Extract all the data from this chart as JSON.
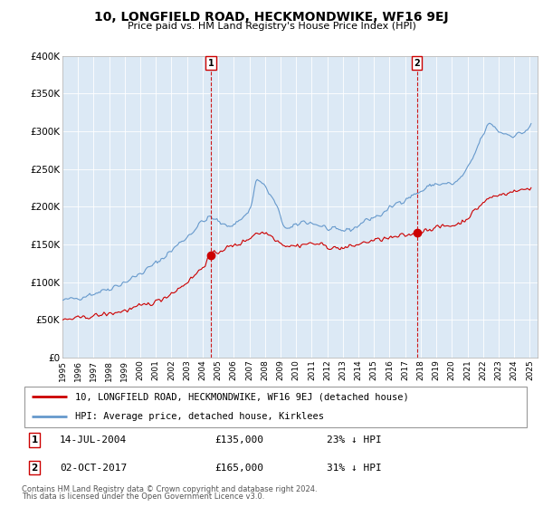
{
  "title": "10, LONGFIELD ROAD, HECKMONDWIKE, WF16 9EJ",
  "subtitle": "Price paid vs. HM Land Registry's House Price Index (HPI)",
  "background_color": "#ffffff",
  "plot_bg_color": "#dce9f5",
  "ylim": [
    0,
    400000
  ],
  "xlim_start": 1995.0,
  "xlim_end": 2025.5,
  "yticks": [
    0,
    50000,
    100000,
    150000,
    200000,
    250000,
    300000,
    350000,
    400000
  ],
  "ytick_labels": [
    "£0",
    "£50K",
    "£100K",
    "£150K",
    "£200K",
    "£250K",
    "£300K",
    "£350K",
    "£400K"
  ],
  "xticks": [
    1995,
    1996,
    1997,
    1998,
    1999,
    2000,
    2001,
    2002,
    2003,
    2004,
    2005,
    2006,
    2007,
    2008,
    2009,
    2010,
    2011,
    2012,
    2013,
    2014,
    2015,
    2016,
    2017,
    2018,
    2019,
    2020,
    2021,
    2022,
    2023,
    2024,
    2025
  ],
  "marker1_x": 2004.54,
  "marker1_y": 135000,
  "marker1_label": "14-JUL-2004",
  "marker1_price": "£135,000",
  "marker1_note": "23% ↓ HPI",
  "marker2_x": 2017.75,
  "marker2_y": 165000,
  "marker2_label": "02-OCT-2017",
  "marker2_price": "£165,000",
  "marker2_note": "31% ↓ HPI",
  "legend_line1": "10, LONGFIELD ROAD, HECKMONDWIKE, WF16 9EJ (detached house)",
  "legend_line2": "HPI: Average price, detached house, Kirklees",
  "footer1": "Contains HM Land Registry data © Crown copyright and database right 2024.",
  "footer2": "This data is licensed under the Open Government Licence v3.0.",
  "red_color": "#cc0000",
  "blue_color": "#6699cc"
}
